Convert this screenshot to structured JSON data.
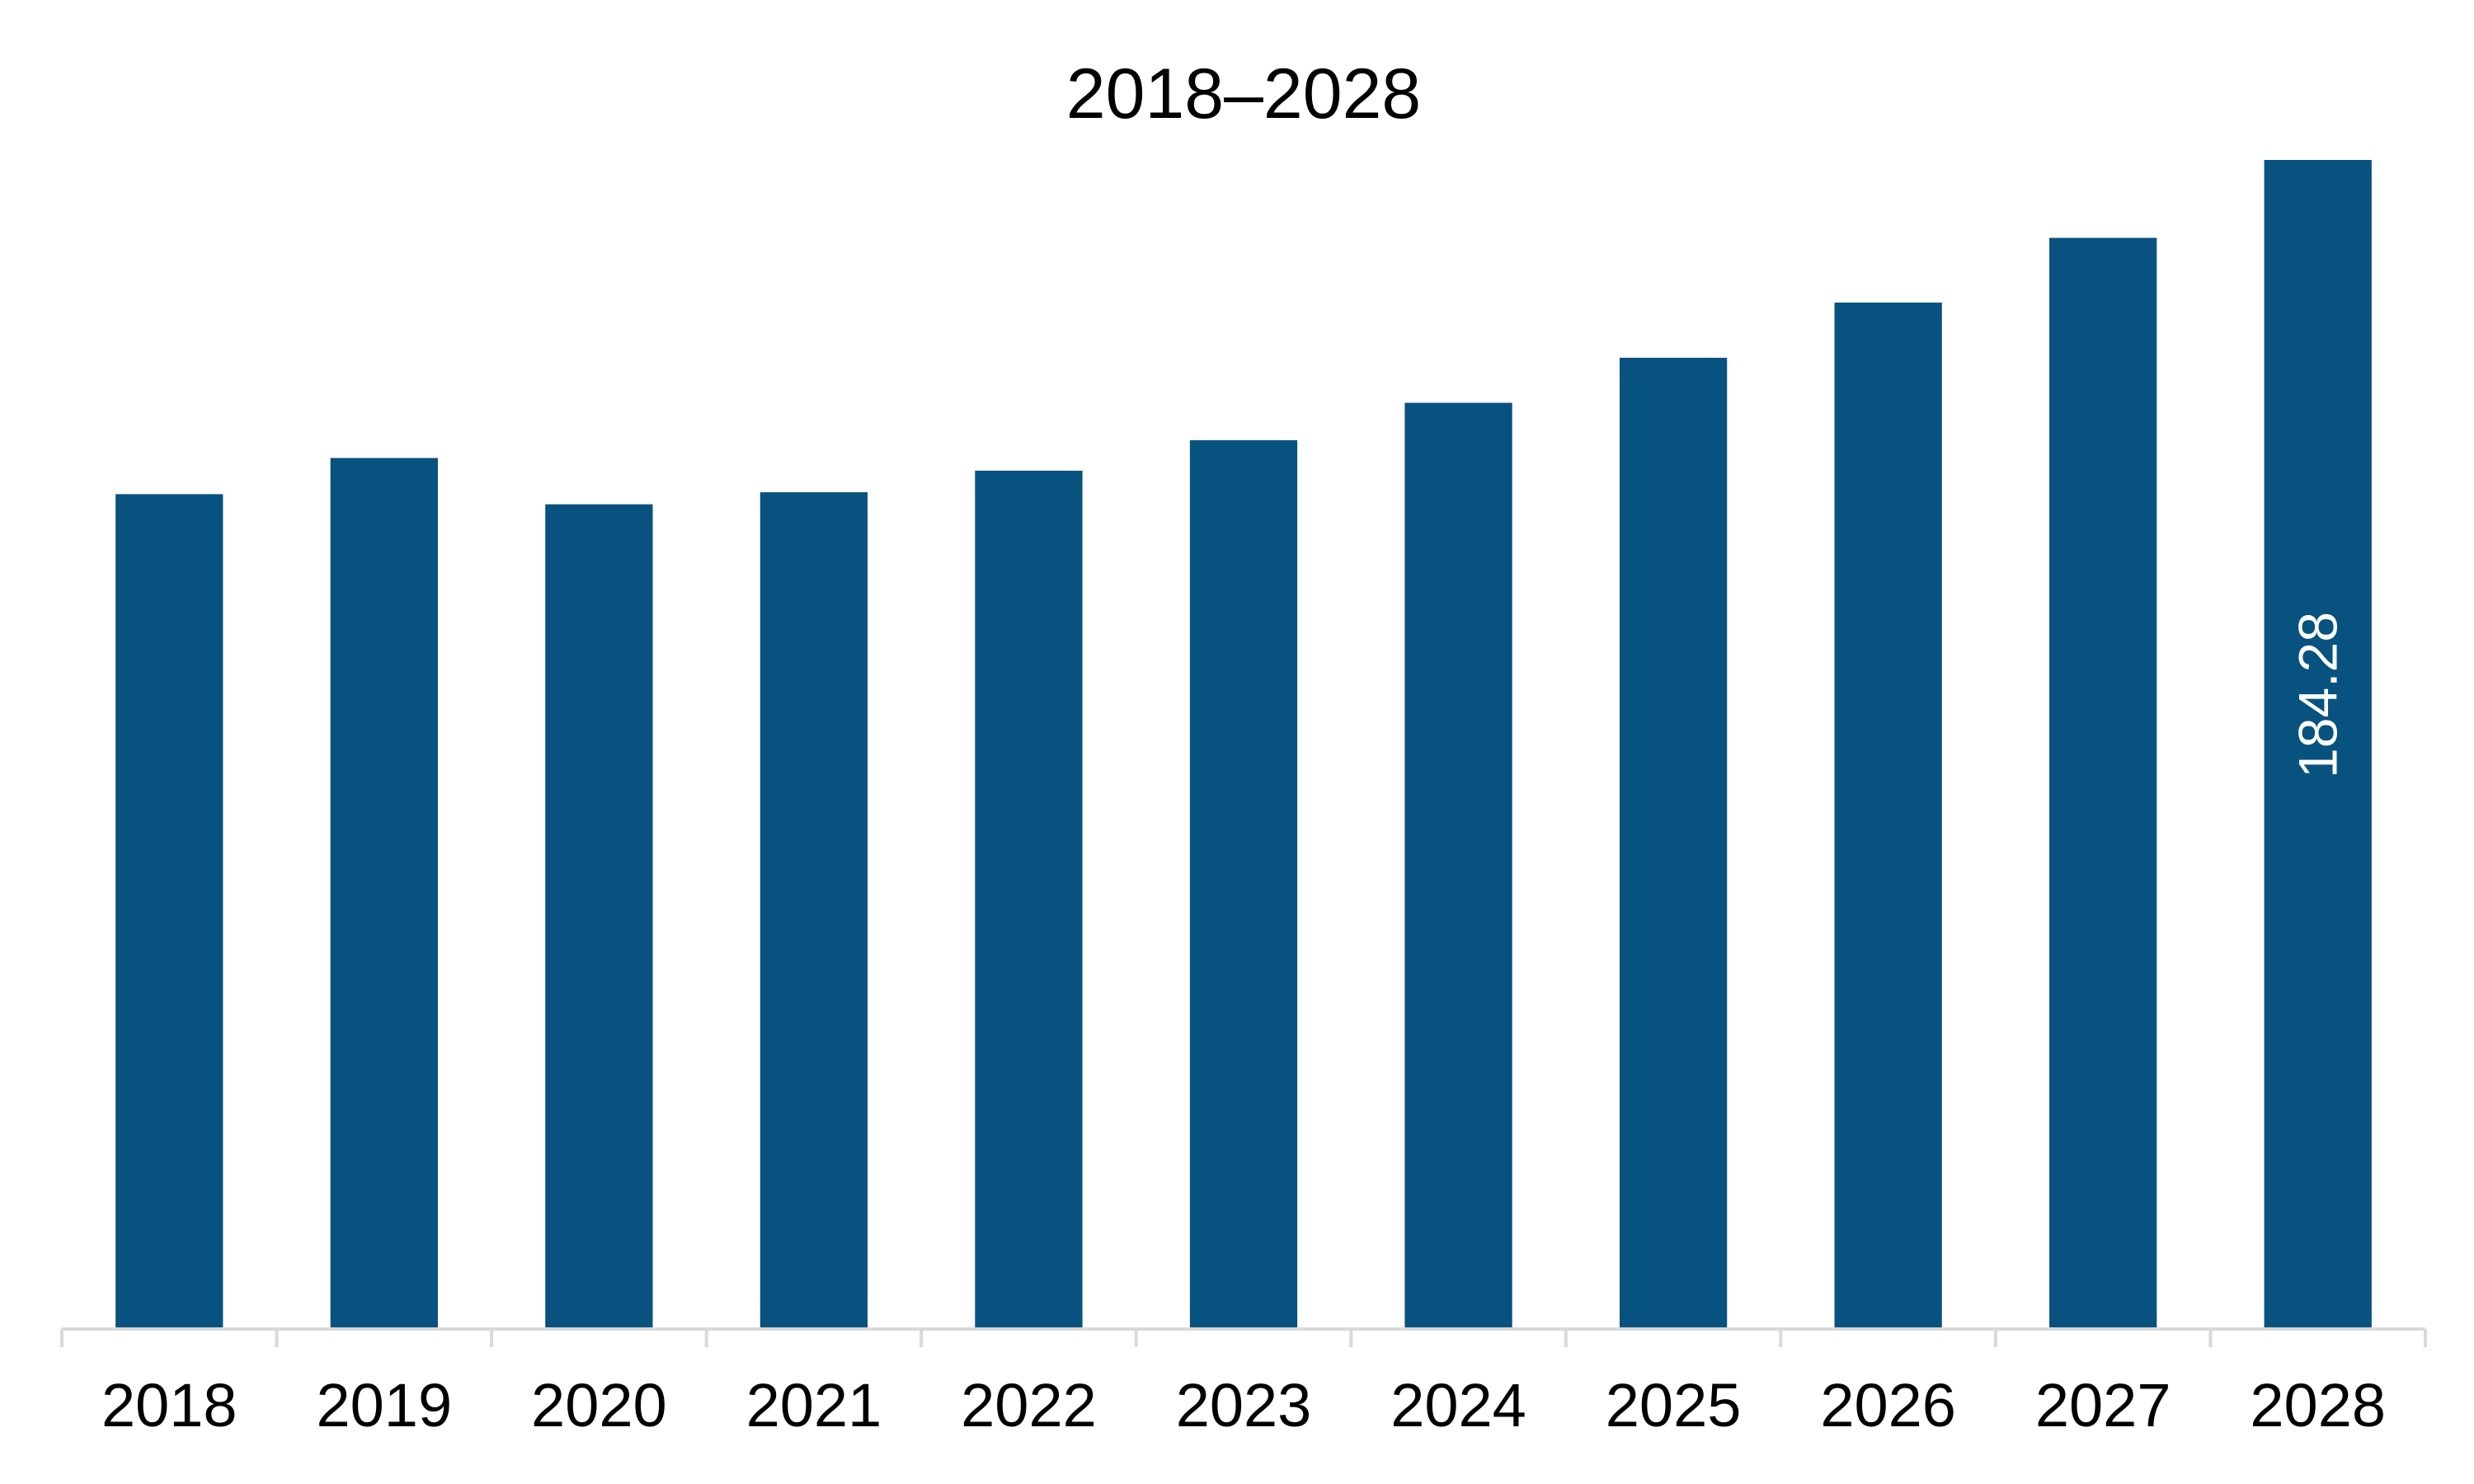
{
  "chart_data": {
    "type": "bar",
    "title": "2018–2028",
    "xlabel": "",
    "ylabel": "",
    "categories": [
      "2018",
      "2019",
      "2020",
      "2021",
      "2022",
      "2023",
      "2024",
      "2025",
      "2026",
      "2027",
      "2028"
    ],
    "values": [
      131.6,
      137.3,
      130.0,
      131.9,
      135.3,
      140.1,
      146.0,
      153.1,
      161.8,
      172.0,
      184.28
    ],
    "data_labels": [
      "",
      "",
      "",
      "",
      "",
      "",
      "",
      "",
      "",
      "",
      "184.28"
    ],
    "ylim": [
      0,
      190
    ],
    "grid": false,
    "legend": "none",
    "bar_color": "#08527f"
  }
}
